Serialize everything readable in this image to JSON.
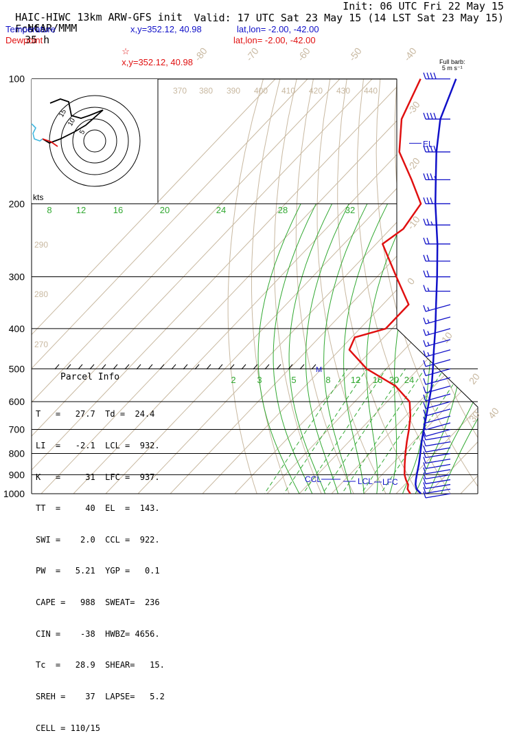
{
  "header": {
    "model": "HAIC-HIWC 13km ARW-GFS init",
    "center": "NCAR/MMM",
    "init": "Init: 06 UTC Fri 22 May 15",
    "fcst_label": "Fcst:",
    "fcst_value": "35 h",
    "valid": "Valid: 17 UTC Sat 23 May 15 (14 LST Sat 23 May 15)"
  },
  "legend": {
    "temperature": {
      "label": "Temperature",
      "xy": "x,y=352.12, 40.98",
      "latlon": "lat,lon= -2.00, -42.00",
      "color": "#1010c8"
    },
    "dewpoint": {
      "label": "Dewpoint",
      "marker": "☆",
      "xy": "x,y=352.12, 40.98",
      "latlon": "lat,lon= -2.00, -42.00",
      "color": "#e01010"
    }
  },
  "full_barb": {
    "line1": "Full barb:",
    "line2": "5 m s⁻¹"
  },
  "hodograph": {
    "units": "kts",
    "ring_labels": [
      "5",
      "10",
      "15"
    ]
  },
  "parcel_info": {
    "title": "Parcel Info",
    "rows": [
      "T   =   27.7  Td =  24.4",
      "LI  =   -2.1  LCL =  932.",
      "K   =     31  LFC =  937.",
      "TT  =     40  EL  =  143.",
      "SWI =    2.0  CCL =  922.",
      "PW  =   5.21  YGP =   0.1",
      "CAPE =   988  SWEAT=  236",
      "CIN =    -38  HWBZ= 4656.",
      "Tc  =   28.9  SHEAR=   15.",
      "SREH =    37  LAPSE=   5.2",
      "CELL = 110/15"
    ]
  },
  "level_labels": {
    "el": "EL",
    "ccl": "CCL",
    "lcl": "LCL",
    "lfc": "LFC",
    "m": "M"
  },
  "chart_data": {
    "type": "line",
    "subtype": "skew-T log-P sounding",
    "pressure_levels": [
      100,
      200,
      300,
      400,
      500,
      600,
      700,
      800,
      900,
      1000
    ],
    "isotherm_labels": [
      "-80",
      "-70",
      "-60",
      "-50",
      "-40",
      "-30",
      "-20",
      "-10",
      "0",
      "10",
      "20",
      "30",
      "40"
    ],
    "dry_adiabat_labels": [
      "370",
      "380",
      "390",
      "400",
      "410",
      "420",
      "430",
      "440",
      "290",
      "280",
      "270"
    ],
    "mixing_ratio_labels": [
      "8",
      "12",
      "16",
      "20",
      "24",
      "28",
      "32"
    ],
    "mixing_ratio_labels_lower": [
      "2",
      "3",
      "5",
      "8",
      "12",
      "16",
      "20",
      "24"
    ],
    "series": [
      {
        "name": "Temperature",
        "color": "#1010c8",
        "points": [
          {
            "p": 1000,
            "t": 27.7
          },
          {
            "p": 975,
            "t": 25.0
          },
          {
            "p": 950,
            "t": 23.3
          },
          {
            "p": 925,
            "t": 22.0
          },
          {
            "p": 900,
            "t": 20.8
          },
          {
            "p": 850,
            "t": 18.4
          },
          {
            "p": 800,
            "t": 15.6
          },
          {
            "p": 750,
            "t": 12.6
          },
          {
            "p": 700,
            "t": 9.6
          },
          {
            "p": 650,
            "t": 6.4
          },
          {
            "p": 600,
            "t": 3.0
          },
          {
            "p": 550,
            "t": -0.8
          },
          {
            "p": 500,
            "t": -5.5
          },
          {
            "p": 450,
            "t": -10.8
          },
          {
            "p": 400,
            "t": -16.6
          },
          {
            "p": 350,
            "t": -23.5
          },
          {
            "p": 300,
            "t": -31.4
          },
          {
            "p": 250,
            "t": -41.0
          },
          {
            "p": 200,
            "t": -53.5
          },
          {
            "p": 175,
            "t": -60.5
          },
          {
            "p": 150,
            "t": -68.5
          },
          {
            "p": 125,
            "t": -77.0
          },
          {
            "p": 100,
            "t": -84.0
          }
        ]
      },
      {
        "name": "Dewpoint",
        "color": "#e01010",
        "points": [
          {
            "p": 1000,
            "t": 24.4
          },
          {
            "p": 975,
            "t": 22.2
          },
          {
            "p": 950,
            "t": 21.0
          },
          {
            "p": 925,
            "t": 18.9
          },
          {
            "p": 900,
            "t": 17.0
          },
          {
            "p": 850,
            "t": 14.0
          },
          {
            "p": 800,
            "t": 11.0
          },
          {
            "p": 750,
            "t": 8.0
          },
          {
            "p": 700,
            "t": 5.0
          },
          {
            "p": 650,
            "t": 1.5
          },
          {
            "p": 600,
            "t": -3.0
          },
          {
            "p": 550,
            "t": -12.0
          },
          {
            "p": 500,
            "t": -26.0
          },
          {
            "p": 450,
            "t": -37.0
          },
          {
            "p": 420,
            "t": -39.0
          },
          {
            "p": 400,
            "t": -32.0
          },
          {
            "p": 350,
            "t": -32.0
          },
          {
            "p": 300,
            "t": -44.0
          },
          {
            "p": 250,
            "t": -58.0
          },
          {
            "p": 230,
            "t": -56.0
          },
          {
            "p": 200,
            "t": -58.0
          },
          {
            "p": 175,
            "t": -68.0
          },
          {
            "p": 150,
            "t": -80.0
          },
          {
            "p": 125,
            "t": -89.0
          },
          {
            "p": 100,
            "t": -95.0
          }
        ]
      }
    ],
    "wind_barbs": {
      "units": "m s-1",
      "profile": [
        {
          "p": 100,
          "speed": 20
        },
        {
          "p": 150,
          "speed": 20
        },
        {
          "p": 200,
          "speed": 15
        },
        {
          "p": 250,
          "speed": 12
        },
        {
          "p": 300,
          "speed": 10
        },
        {
          "p": 400,
          "speed": 8
        },
        {
          "p": 500,
          "speed": 7
        },
        {
          "p": 600,
          "speed": 6
        },
        {
          "p": 700,
          "speed": 6
        },
        {
          "p": 800,
          "speed": 6
        },
        {
          "p": 900,
          "speed": 7
        },
        {
          "p": 1000,
          "speed": 5
        }
      ]
    }
  },
  "colors": {
    "isotherm": "#c8b8a0",
    "mixing_ratio": "#30a830",
    "isobar": "#000000",
    "temperature": "#1010c8",
    "dewpoint": "#e01010",
    "barb": "#1010c8"
  }
}
